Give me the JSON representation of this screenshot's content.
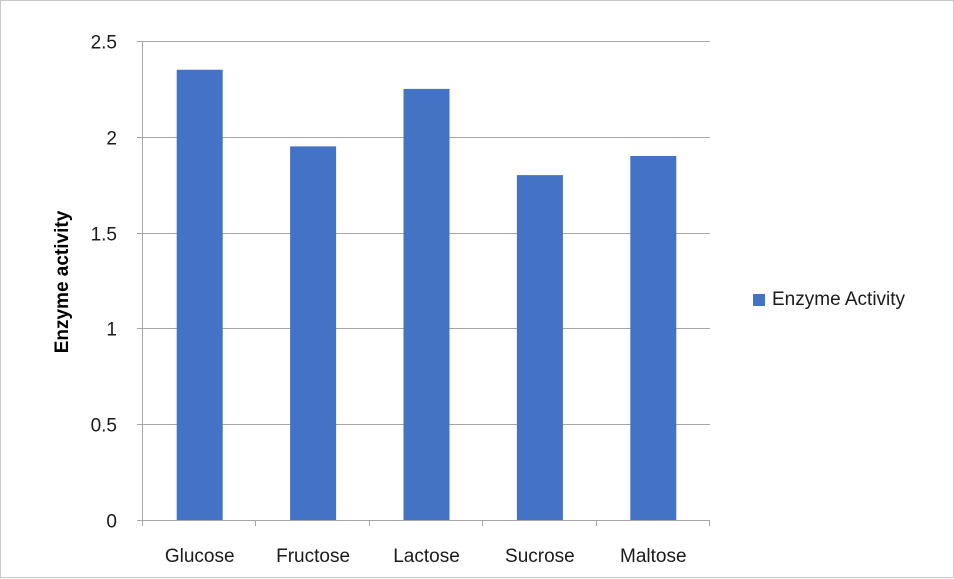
{
  "chart_data": {
    "type": "bar",
    "title": "",
    "xlabel": "",
    "ylabel": "Enzyme activity",
    "categories": [
      "Glucose",
      "Fructose",
      "Lactose",
      "Sucrose",
      "Maltose"
    ],
    "series": [
      {
        "name": "Enzyme Activity",
        "values": [
          2.35,
          1.95,
          2.25,
          1.8,
          1.9
        ],
        "color": "#4472C4"
      }
    ],
    "ylim": [
      0,
      2.5
    ],
    "yticks": [
      "0",
      "0.5",
      "1",
      "1.5",
      "2",
      "2.5"
    ],
    "grid": true,
    "legend_position": "right"
  }
}
